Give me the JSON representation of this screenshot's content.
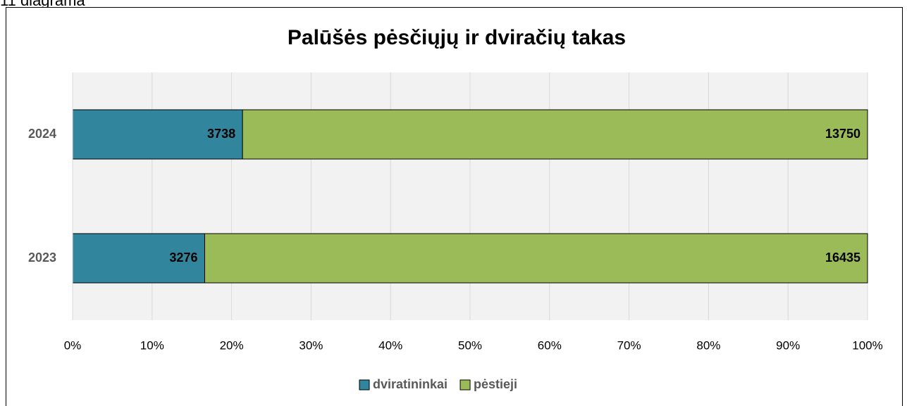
{
  "caption": "11 diagrama",
  "chart_data": {
    "type": "bar",
    "orientation": "horizontal",
    "stacking": "percent",
    "title": "Palūšės pėsčiųjų ir dviračių takas",
    "categories": [
      "2023",
      "2024"
    ],
    "series": [
      {
        "name": "dviratininkai",
        "color": "#31859c",
        "values": [
          3276,
          3738
        ]
      },
      {
        "name": "pėstieji",
        "color": "#9bbb59",
        "values": [
          16435,
          13750
        ]
      }
    ],
    "xlim": [
      0,
      100
    ],
    "xticks": [
      {
        "value": 0,
        "label": "0%"
      },
      {
        "value": 10,
        "label": "10%"
      },
      {
        "value": 20,
        "label": "20%"
      },
      {
        "value": 30,
        "label": "30%"
      },
      {
        "value": 40,
        "label": "40%"
      },
      {
        "value": 50,
        "label": "50%"
      },
      {
        "value": 60,
        "label": "60%"
      },
      {
        "value": 70,
        "label": "70%"
      },
      {
        "value": 80,
        "label": "80%"
      },
      {
        "value": 90,
        "label": "90%"
      },
      {
        "value": 100,
        "label": "100%"
      }
    ],
    "grid": true,
    "legend": "bottom"
  }
}
